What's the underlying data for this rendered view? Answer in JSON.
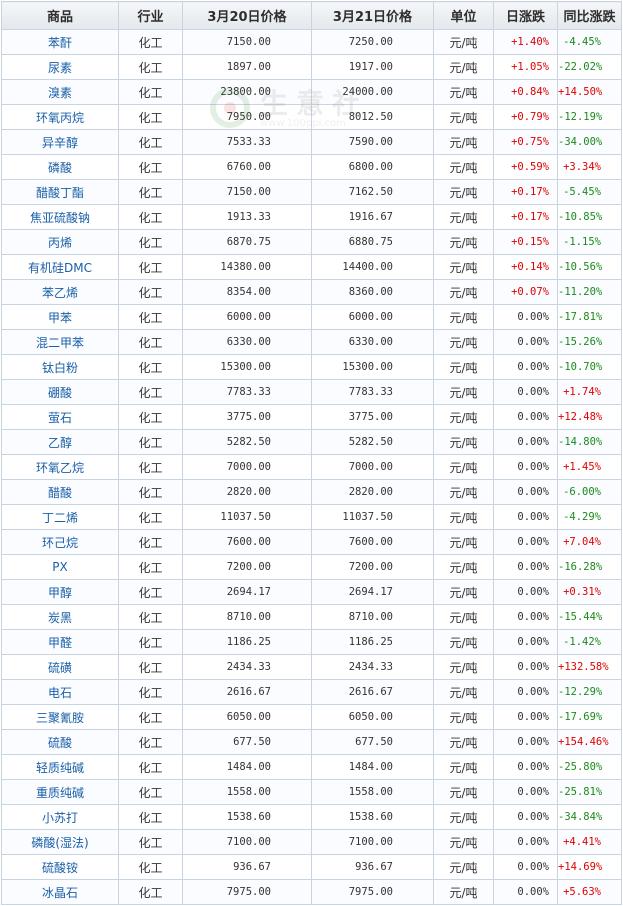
{
  "watermark": {
    "text": "生意社",
    "url": "www.100ppi.com"
  },
  "headers": {
    "name": "商品",
    "industry": "行业",
    "price1": "3月20日价格",
    "price2": "3月21日价格",
    "unit": "单位",
    "day": "日涨跌",
    "yoy": "同比涨跌"
  },
  "colors": {
    "up": "#e00000",
    "down": "#1a8a1a",
    "link": "#1a5fa8"
  },
  "rows": [
    {
      "name": "苯酐",
      "industry": "化工",
      "p1": "7150.00",
      "p2": "7250.00",
      "unit": "元/吨",
      "day": "+1.40%",
      "yoy": "-4.45%"
    },
    {
      "name": "尿素",
      "industry": "化工",
      "p1": "1897.00",
      "p2": "1917.00",
      "unit": "元/吨",
      "day": "+1.05%",
      "yoy": "-22.02%"
    },
    {
      "name": "溴素",
      "industry": "化工",
      "p1": "23800.00",
      "p2": "24000.00",
      "unit": "元/吨",
      "day": "+0.84%",
      "yoy": "+14.50%"
    },
    {
      "name": "环氧丙烷",
      "industry": "化工",
      "p1": "7950.00",
      "p2": "8012.50",
      "unit": "元/吨",
      "day": "+0.79%",
      "yoy": "-12.19%"
    },
    {
      "name": "异辛醇",
      "industry": "化工",
      "p1": "7533.33",
      "p2": "7590.00",
      "unit": "元/吨",
      "day": "+0.75%",
      "yoy": "-34.00%"
    },
    {
      "name": "磷酸",
      "industry": "化工",
      "p1": "6760.00",
      "p2": "6800.00",
      "unit": "元/吨",
      "day": "+0.59%",
      "yoy": "+3.34%"
    },
    {
      "name": "醋酸丁酯",
      "industry": "化工",
      "p1": "7150.00",
      "p2": "7162.50",
      "unit": "元/吨",
      "day": "+0.17%",
      "yoy": "-5.45%"
    },
    {
      "name": "焦亚硫酸钠",
      "industry": "化工",
      "p1": "1913.33",
      "p2": "1916.67",
      "unit": "元/吨",
      "day": "+0.17%",
      "yoy": "-10.85%"
    },
    {
      "name": "丙烯",
      "industry": "化工",
      "p1": "6870.75",
      "p2": "6880.75",
      "unit": "元/吨",
      "day": "+0.15%",
      "yoy": "-1.15%"
    },
    {
      "name": "有机硅DMC",
      "industry": "化工",
      "p1": "14380.00",
      "p2": "14400.00",
      "unit": "元/吨",
      "day": "+0.14%",
      "yoy": "-10.56%"
    },
    {
      "name": "苯乙烯",
      "industry": "化工",
      "p1": "8354.00",
      "p2": "8360.00",
      "unit": "元/吨",
      "day": "+0.07%",
      "yoy": "-11.20%"
    },
    {
      "name": "甲苯",
      "industry": "化工",
      "p1": "6000.00",
      "p2": "6000.00",
      "unit": "元/吨",
      "day": "0.00%",
      "yoy": "-17.81%"
    },
    {
      "name": "混二甲苯",
      "industry": "化工",
      "p1": "6330.00",
      "p2": "6330.00",
      "unit": "元/吨",
      "day": "0.00%",
      "yoy": "-15.26%"
    },
    {
      "name": "钛白粉",
      "industry": "化工",
      "p1": "15300.00",
      "p2": "15300.00",
      "unit": "元/吨",
      "day": "0.00%",
      "yoy": "-10.70%"
    },
    {
      "name": "硼酸",
      "industry": "化工",
      "p1": "7783.33",
      "p2": "7783.33",
      "unit": "元/吨",
      "day": "0.00%",
      "yoy": "+1.74%"
    },
    {
      "name": "萤石",
      "industry": "化工",
      "p1": "3775.00",
      "p2": "3775.00",
      "unit": "元/吨",
      "day": "0.00%",
      "yoy": "+12.48%"
    },
    {
      "name": "乙醇",
      "industry": "化工",
      "p1": "5282.50",
      "p2": "5282.50",
      "unit": "元/吨",
      "day": "0.00%",
      "yoy": "-14.80%"
    },
    {
      "name": "环氧乙烷",
      "industry": "化工",
      "p1": "7000.00",
      "p2": "7000.00",
      "unit": "元/吨",
      "day": "0.00%",
      "yoy": "+1.45%"
    },
    {
      "name": "醋酸",
      "industry": "化工",
      "p1": "2820.00",
      "p2": "2820.00",
      "unit": "元/吨",
      "day": "0.00%",
      "yoy": "-6.00%"
    },
    {
      "name": "丁二烯",
      "industry": "化工",
      "p1": "11037.50",
      "p2": "11037.50",
      "unit": "元/吨",
      "day": "0.00%",
      "yoy": "-4.29%"
    },
    {
      "name": "环己烷",
      "industry": "化工",
      "p1": "7600.00",
      "p2": "7600.00",
      "unit": "元/吨",
      "day": "0.00%",
      "yoy": "+7.04%"
    },
    {
      "name": "PX",
      "industry": "化工",
      "p1": "7200.00",
      "p2": "7200.00",
      "unit": "元/吨",
      "day": "0.00%",
      "yoy": "-16.28%"
    },
    {
      "name": "甲醇",
      "industry": "化工",
      "p1": "2694.17",
      "p2": "2694.17",
      "unit": "元/吨",
      "day": "0.00%",
      "yoy": "+0.31%"
    },
    {
      "name": "炭黑",
      "industry": "化工",
      "p1": "8710.00",
      "p2": "8710.00",
      "unit": "元/吨",
      "day": "0.00%",
      "yoy": "-15.44%"
    },
    {
      "name": "甲醛",
      "industry": "化工",
      "p1": "1186.25",
      "p2": "1186.25",
      "unit": "元/吨",
      "day": "0.00%",
      "yoy": "-1.42%"
    },
    {
      "name": "硫磺",
      "industry": "化工",
      "p1": "2434.33",
      "p2": "2434.33",
      "unit": "元/吨",
      "day": "0.00%",
      "yoy": "+132.58%"
    },
    {
      "name": "电石",
      "industry": "化工",
      "p1": "2616.67",
      "p2": "2616.67",
      "unit": "元/吨",
      "day": "0.00%",
      "yoy": "-12.29%"
    },
    {
      "name": "三聚氰胺",
      "industry": "化工",
      "p1": "6050.00",
      "p2": "6050.00",
      "unit": "元/吨",
      "day": "0.00%",
      "yoy": "-17.69%"
    },
    {
      "name": "硫酸",
      "industry": "化工",
      "p1": "677.50",
      "p2": "677.50",
      "unit": "元/吨",
      "day": "0.00%",
      "yoy": "+154.46%"
    },
    {
      "name": "轻质纯碱",
      "industry": "化工",
      "p1": "1484.00",
      "p2": "1484.00",
      "unit": "元/吨",
      "day": "0.00%",
      "yoy": "-25.80%"
    },
    {
      "name": "重质纯碱",
      "industry": "化工",
      "p1": "1558.00",
      "p2": "1558.00",
      "unit": "元/吨",
      "day": "0.00%",
      "yoy": "-25.81%"
    },
    {
      "name": "小苏打",
      "industry": "化工",
      "p1": "1538.60",
      "p2": "1538.60",
      "unit": "元/吨",
      "day": "0.00%",
      "yoy": "-34.84%"
    },
    {
      "name": "磷酸(湿法)",
      "industry": "化工",
      "p1": "7100.00",
      "p2": "7100.00",
      "unit": "元/吨",
      "day": "0.00%",
      "yoy": "+4.41%"
    },
    {
      "name": "硫酸铵",
      "industry": "化工",
      "p1": "936.67",
      "p2": "936.67",
      "unit": "元/吨",
      "day": "0.00%",
      "yoy": "+14.69%"
    },
    {
      "name": "冰晶石",
      "industry": "化工",
      "p1": "7975.00",
      "p2": "7975.00",
      "unit": "元/吨",
      "day": "0.00%",
      "yoy": "+5.63%"
    }
  ]
}
